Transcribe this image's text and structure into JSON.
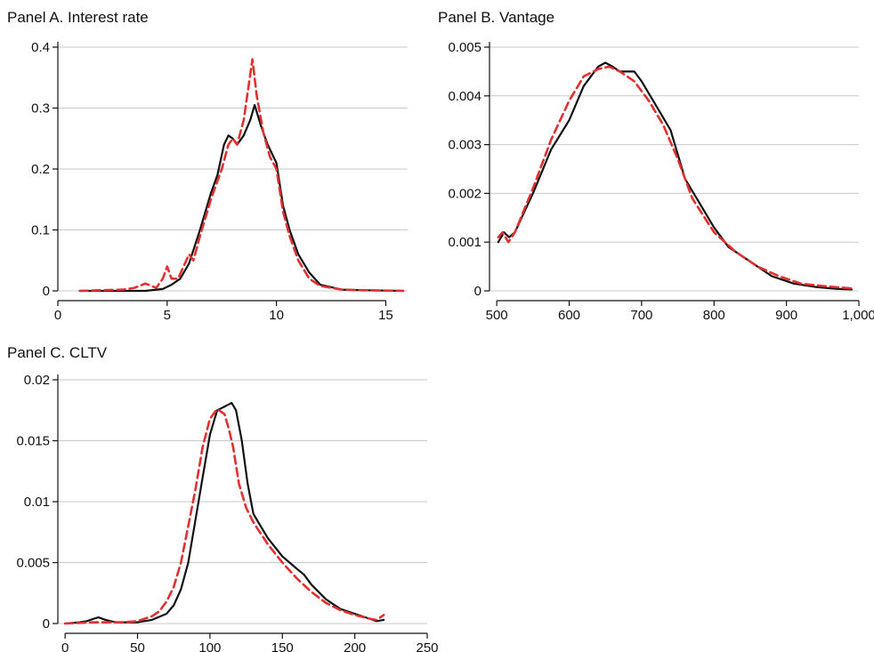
{
  "chart_data": [
    {
      "type": "line",
      "title": "Panel A. Interest rate",
      "xlim": [
        0,
        16
      ],
      "ylim": [
        0,
        0.4
      ],
      "xticks": [
        "0",
        "5",
        "10",
        "15"
      ],
      "xtick_values": [
        0,
        5,
        10,
        15
      ],
      "yticks": [
        "0",
        "0.1",
        "0.2",
        "0.3",
        "0.4"
      ],
      "ytick_values": [
        0,
        0.1,
        0.2,
        0.3,
        0.4
      ],
      "grid": true,
      "legend": "none",
      "series": [
        {
          "color": "#111111",
          "style": "solid",
          "x": [
            1,
            2,
            3,
            4,
            4.8,
            5.2,
            5.6,
            6,
            6.5,
            7,
            7.3,
            7.6,
            7.8,
            8,
            8.2,
            8.5,
            8.8,
            9,
            9.3,
            9.6,
            10,
            10.3,
            10.6,
            11,
            11.5,
            12,
            13,
            14,
            15.8
          ],
          "y": [
            0,
            0,
            0,
            0,
            0.003,
            0.01,
            0.02,
            0.045,
            0.1,
            0.16,
            0.19,
            0.24,
            0.255,
            0.25,
            0.24,
            0.255,
            0.28,
            0.305,
            0.27,
            0.24,
            0.21,
            0.14,
            0.1,
            0.06,
            0.03,
            0.01,
            0.002,
            0.001,
            0
          ]
        },
        {
          "color": "#e03030",
          "style": "dashed",
          "x": [
            1,
            2,
            3,
            3.5,
            4,
            4.5,
            4.8,
            5,
            5.2,
            5.5,
            6,
            6.2,
            6.5,
            7,
            7.5,
            7.8,
            8,
            8.2,
            8.5,
            8.7,
            8.9,
            9.1,
            9.4,
            9.7,
            10,
            10.3,
            10.6,
            11,
            11.5,
            12,
            13,
            14,
            15.8
          ],
          "y": [
            0,
            0.001,
            0.002,
            0.005,
            0.012,
            0.005,
            0.02,
            0.04,
            0.02,
            0.02,
            0.06,
            0.05,
            0.09,
            0.15,
            0.2,
            0.24,
            0.25,
            0.24,
            0.28,
            0.33,
            0.38,
            0.32,
            0.26,
            0.22,
            0.2,
            0.13,
            0.09,
            0.05,
            0.02,
            0.008,
            0.002,
            0.001,
            0
          ]
        }
      ]
    },
    {
      "type": "line",
      "title": "Panel B. Vantage",
      "xlim": [
        490,
        1000
      ],
      "ylim": [
        0,
        0.005
      ],
      "xticks": [
        "500",
        "600",
        "700",
        "800",
        "900",
        "1,000"
      ],
      "xtick_values": [
        500,
        600,
        700,
        800,
        900,
        1000
      ],
      "yticks": [
        "0",
        "0.001",
        "0.002",
        "0.003",
        "0.004",
        "0.005"
      ],
      "ytick_values": [
        0,
        0.001,
        0.002,
        0.003,
        0.004,
        0.005
      ],
      "grid": true,
      "legend": "none",
      "series": [
        {
          "color": "#111111",
          "style": "solid",
          "x": [
            502,
            510,
            517,
            525,
            550,
            575,
            600,
            620,
            640,
            650,
            660,
            670,
            680,
            690,
            700,
            720,
            740,
            760,
            780,
            800,
            820,
            850,
            880,
            910,
            940,
            970,
            990
          ],
          "y": [
            0.001,
            0.0012,
            0.0011,
            0.0012,
            0.002,
            0.0029,
            0.0035,
            0.0042,
            0.0046,
            0.00468,
            0.0046,
            0.0045,
            0.0045,
            0.0045,
            0.0043,
            0.0038,
            0.0033,
            0.0023,
            0.0018,
            0.0013,
            0.0009,
            0.0006,
            0.0003,
            0.00015,
            8e-05,
            4e-05,
            3e-05
          ]
        },
        {
          "color": "#e03030",
          "style": "dashed",
          "x": [
            502,
            508,
            512,
            516,
            525,
            550,
            575,
            600,
            620,
            640,
            655,
            670,
            690,
            710,
            730,
            750,
            770,
            800,
            830,
            860,
            890,
            920,
            950,
            990
          ],
          "y": [
            0.0011,
            0.0012,
            0.0011,
            0.001,
            0.0012,
            0.0021,
            0.0031,
            0.0039,
            0.0044,
            0.00455,
            0.0046,
            0.0045,
            0.0043,
            0.0039,
            0.0034,
            0.0027,
            0.0019,
            0.0012,
            0.0008,
            0.0005,
            0.0003,
            0.00015,
            0.0001,
            5e-05
          ]
        }
      ]
    },
    {
      "type": "line",
      "title": "Panel C. CLTV",
      "xlim": [
        -5,
        250
      ],
      "ylim": [
        0,
        0.02
      ],
      "xticks": [
        "0",
        "50",
        "100",
        "150",
        "200",
        "250"
      ],
      "xtick_values": [
        0,
        50,
        100,
        150,
        200,
        250
      ],
      "yticks": [
        "0",
        "0.005",
        "0.01",
        "0.015",
        "0.02"
      ],
      "ytick_values": [
        0,
        0.005,
        0.01,
        0.015,
        0.02
      ],
      "grid": true,
      "legend": "none",
      "series": [
        {
          "color": "#111111",
          "style": "solid",
          "x": [
            0,
            10,
            15,
            20,
            23,
            28,
            35,
            50,
            60,
            70,
            75,
            80,
            85,
            90,
            95,
            100,
            105,
            110,
            115,
            118,
            122,
            126,
            130,
            135,
            140,
            150,
            160,
            165,
            170,
            180,
            190,
            200,
            210,
            215,
            220
          ],
          "y": [
            0,
            0.0001,
            0.0002,
            0.0004,
            0.0005,
            0.0003,
            0.0001,
            0.0001,
            0.0003,
            0.0008,
            0.0015,
            0.0028,
            0.005,
            0.0085,
            0.012,
            0.0155,
            0.0175,
            0.0178,
            0.0181,
            0.0175,
            0.015,
            0.0115,
            0.009,
            0.008,
            0.007,
            0.0055,
            0.0045,
            0.004,
            0.0032,
            0.002,
            0.0012,
            0.0008,
            0.0004,
            0.0002,
            0.0003
          ]
        },
        {
          "color": "#e03030",
          "style": "dashed",
          "x": [
            0,
            10,
            20,
            30,
            40,
            50,
            60,
            65,
            70,
            75,
            80,
            85,
            90,
            95,
            100,
            105,
            110,
            113,
            116,
            120,
            125,
            130,
            140,
            150,
            160,
            170,
            180,
            190,
            200,
            210,
            215,
            220
          ],
          "y": [
            0,
            5e-05,
            0.0001,
            0.0001,
            0.0001,
            0.0002,
            0.0006,
            0.001,
            0.0018,
            0.003,
            0.005,
            0.008,
            0.011,
            0.0145,
            0.0168,
            0.0176,
            0.0172,
            0.016,
            0.0145,
            0.0115,
            0.0095,
            0.0083,
            0.0065,
            0.005,
            0.0037,
            0.0026,
            0.0017,
            0.0011,
            0.0007,
            0.0004,
            0.0003,
            0.0007
          ]
        }
      ]
    }
  ]
}
